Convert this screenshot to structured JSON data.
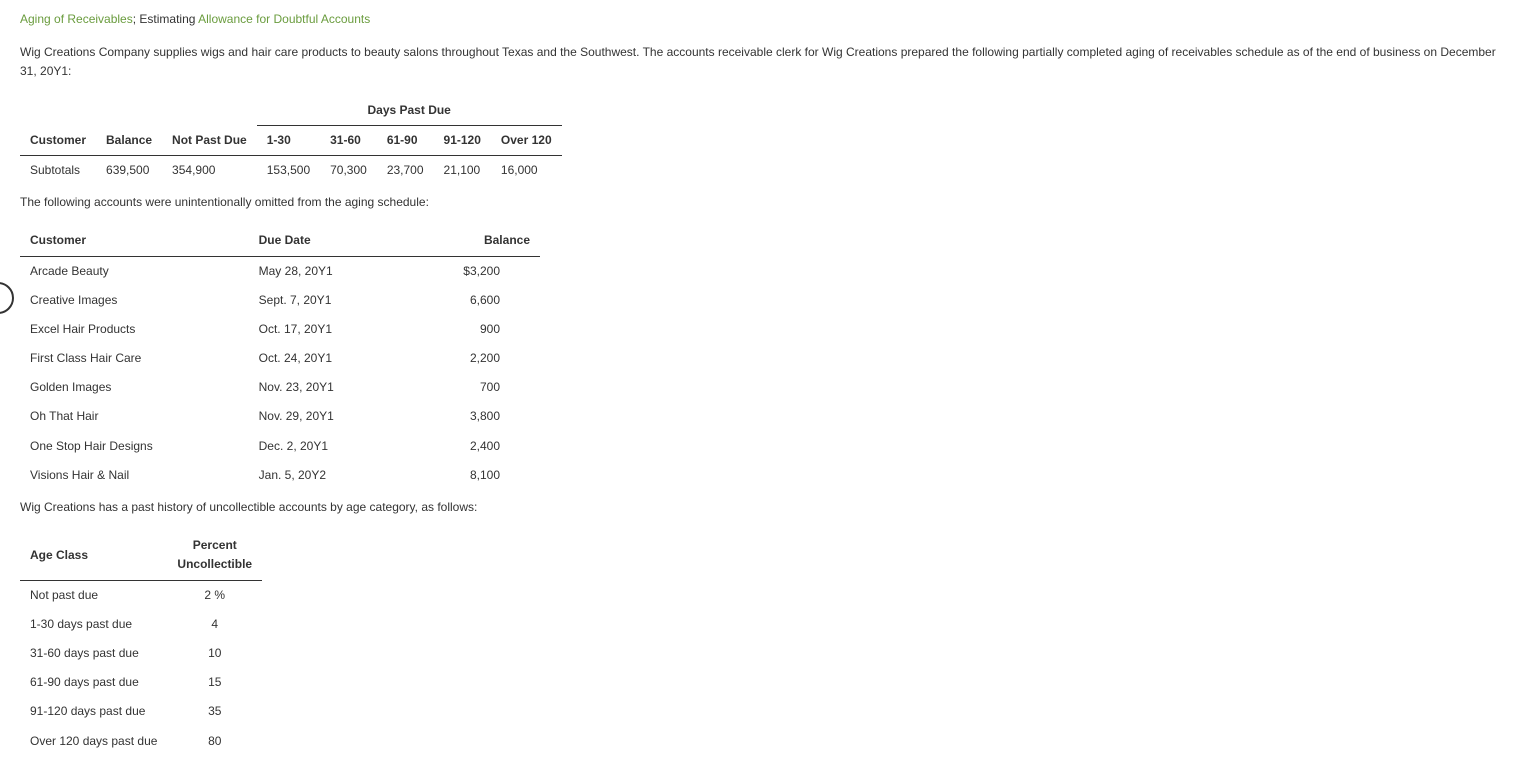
{
  "title": {
    "part1": "Aging of Receivables",
    "sep": "; Estimating ",
    "part2": "Allowance for Doubtful Accounts"
  },
  "intro": "Wig Creations Company supplies wigs and hair care products to beauty salons throughout Texas and the Southwest. The accounts receivable clerk for Wig Creations prepared the following partially completed aging of receivables schedule as of the end of business on December 31, 20Y1:",
  "t1": {
    "span_header": "Days Past Due",
    "headers": [
      "Customer",
      "Balance",
      "Not Past Due",
      "1-30",
      "31-60",
      "61-90",
      "91-120",
      "Over 120"
    ],
    "row_label": "Subtotals",
    "values": [
      "639,500",
      "354,900",
      "153,500",
      "70,300",
      "23,700",
      "21,100",
      "16,000"
    ]
  },
  "omitted_intro": "The following accounts were unintentionally omitted from the aging schedule:",
  "t2": {
    "headers": [
      "Customer",
      "Due Date",
      "Balance"
    ],
    "rows": [
      {
        "customer": "Arcade Beauty",
        "due": "May 28, 20Y1",
        "balance": "$3,200"
      },
      {
        "customer": "Creative Images",
        "due": "Sept. 7, 20Y1",
        "balance": "6,600"
      },
      {
        "customer": "Excel Hair Products",
        "due": "Oct. 17, 20Y1",
        "balance": "900"
      },
      {
        "customer": "First Class Hair Care",
        "due": "Oct. 24, 20Y1",
        "balance": "2,200"
      },
      {
        "customer": "Golden Images",
        "due": "Nov. 23, 20Y1",
        "balance": "700"
      },
      {
        "customer": "Oh That Hair",
        "due": "Nov. 29, 20Y1",
        "balance": "3,800"
      },
      {
        "customer": "One Stop Hair Designs",
        "due": "Dec. 2, 20Y1",
        "balance": "2,400"
      },
      {
        "customer": "Visions Hair & Nail",
        "due": "Jan. 5, 20Y2",
        "balance": "8,100"
      }
    ]
  },
  "history_intro": "Wig Creations has a past history of uncollectible accounts by age category, as follows:",
  "t3": {
    "headers": [
      "Age Class",
      "Percent Uncollectible"
    ],
    "rows": [
      {
        "age": "Not past due",
        "pct": "2 %"
      },
      {
        "age": "1-30 days past due",
        "pct": "4"
      },
      {
        "age": "31-60 days past due",
        "pct": "10"
      },
      {
        "age": "61-90 days past due",
        "pct": "15"
      },
      {
        "age": "91-120 days past due",
        "pct": "35"
      },
      {
        "age": "Over 120 days past due",
        "pct": "80"
      }
    ]
  }
}
